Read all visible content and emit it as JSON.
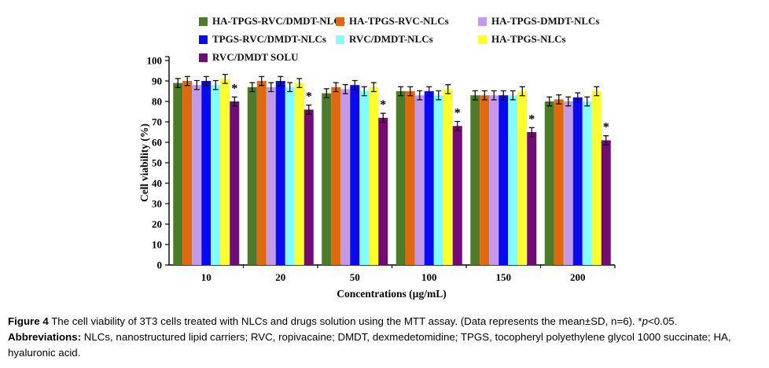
{
  "caption": {
    "figure_label": "Figure 4",
    "figure_text": " The cell viability of 3T3 cells treated with NLCs and drugs solution using the MTT assay. (Data represents the mean±SD, n=6). *",
    "p_italic": "p",
    "figure_text_tail": "<0.05.",
    "abbr_label": "Abbreviations:",
    "abbr_text": " NLCs, nanostructured lipid carriers; RVC, ropivacaine; DMDT, dexmedetomidine; TPGS, tocopheryl polyethylene glycol 1000 succinate; HA, hyaluronic acid."
  },
  "chart_data": {
    "type": "bar",
    "title": "",
    "xlabel": "Concentrations (µg/mL)",
    "ylabel": "Cell viability (%)",
    "ylim": [
      0,
      100
    ],
    "ytick_step": 10,
    "grid": false,
    "legend_position": "top",
    "error_bar_sd": 2.2,
    "significance_marker": "*",
    "categories": [
      "10",
      "20",
      "50",
      "100",
      "150",
      "200"
    ],
    "series": [
      {
        "name": "HA-TPGS-RVC/DMDT-NLCs",
        "color": "#4e7b2a",
        "values": [
          89,
          87,
          84,
          85,
          83,
          80
        ],
        "significant": false
      },
      {
        "name": "HA-TPGS-RVC-NLCs",
        "color": "#e0690e",
        "values": [
          90,
          90,
          87,
          85,
          83,
          81
        ],
        "significant": false
      },
      {
        "name": "HA-TPGS-DMDT-NLCs",
        "color": "#c49ae8",
        "values": [
          88,
          87,
          86,
          83,
          83,
          80
        ],
        "significant": false
      },
      {
        "name": "TPGS-RVC/DMDT-NLCs",
        "color": "#0a0af0",
        "values": [
          90,
          90,
          88,
          85,
          83,
          82
        ],
        "significant": false
      },
      {
        "name": "RVC/DMDT-NLCs",
        "color": "#84ffff",
        "values": [
          88,
          87,
          85,
          83,
          83,
          80
        ],
        "significant": false
      },
      {
        "name": "HA-TPGS-NLCs",
        "color": "#ffff2e",
        "values": [
          91,
          89,
          87,
          86,
          85,
          85
        ],
        "significant": false
      },
      {
        "name": "RVC/DMDT SOLU",
        "color": "#720b76",
        "values": [
          80,
          76,
          72,
          68,
          65,
          61
        ],
        "significant": true
      }
    ]
  }
}
